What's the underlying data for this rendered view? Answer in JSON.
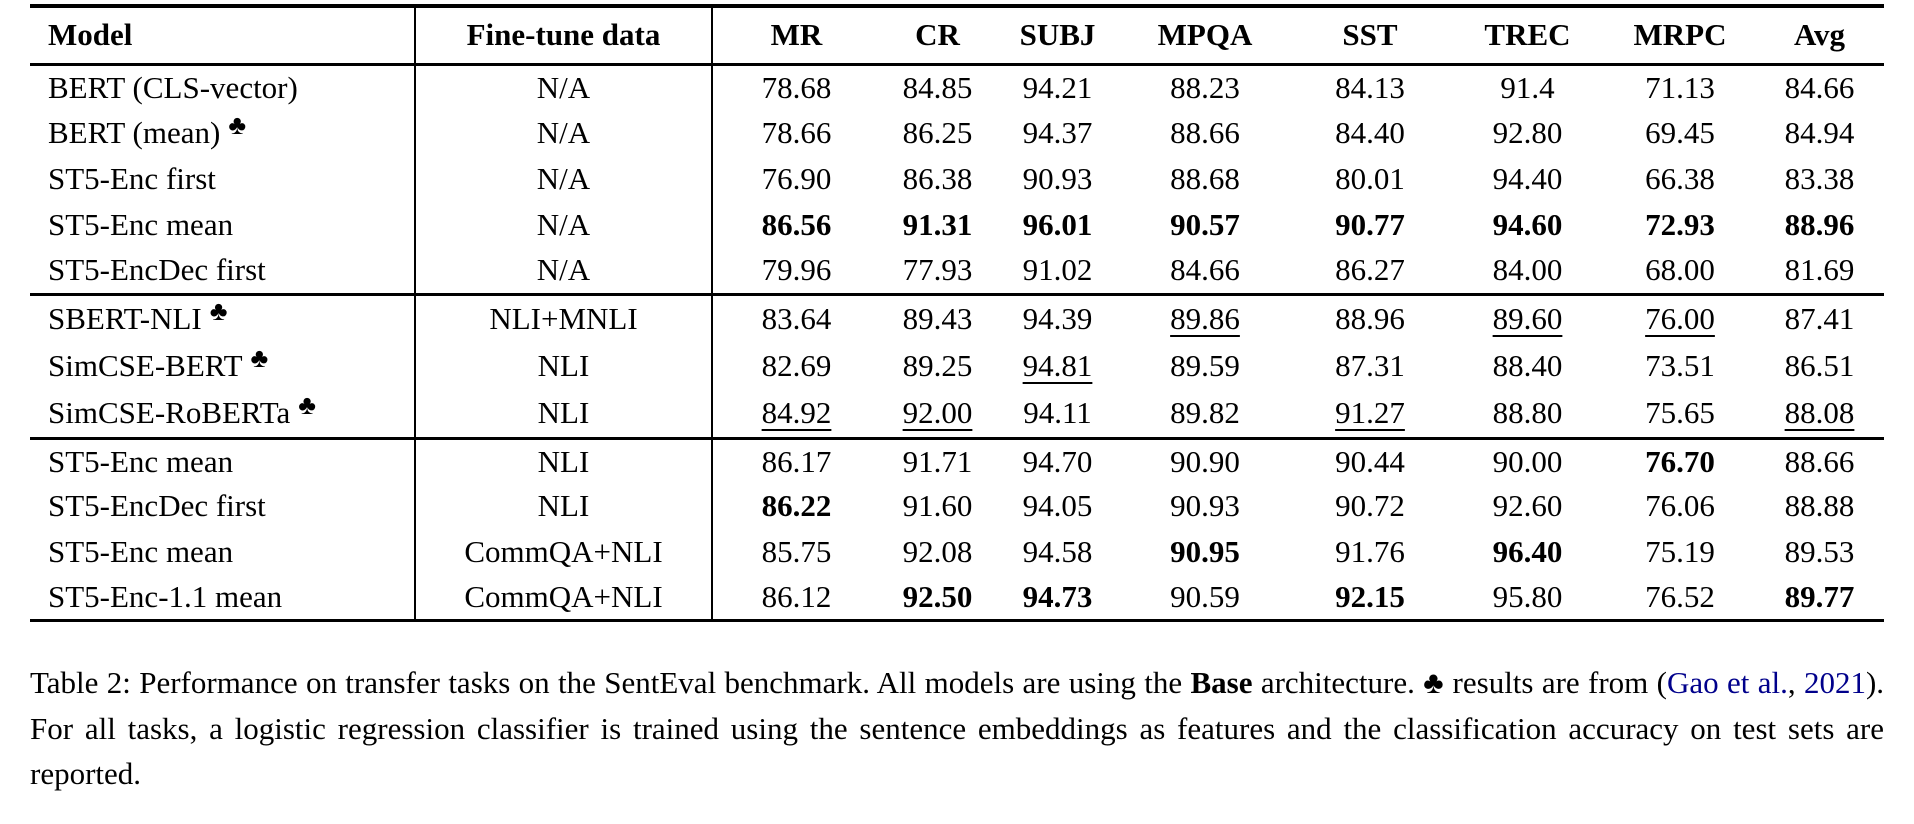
{
  "colors": {
    "citation_blue": "#00008B",
    "text": "#000000"
  },
  "icons": {
    "club": "♣"
  },
  "table": {
    "columns": [
      "Model",
      "Fine-tune data",
      "MR",
      "CR",
      "SUBJ",
      "MPQA",
      "SST",
      "TREC",
      "MRPC",
      "Avg"
    ],
    "groups": [
      {
        "rows": [
          {
            "model": "BERT (CLS-vector)",
            "club": false,
            "finetune": "N/A",
            "scores": [
              [
                "78.68",
                ""
              ],
              [
                "84.85",
                ""
              ],
              [
                "94.21",
                ""
              ],
              [
                "88.23",
                ""
              ],
              [
                "84.13",
                ""
              ],
              [
                "91.4",
                ""
              ],
              [
                "71.13",
                ""
              ],
              [
                "84.66",
                ""
              ]
            ]
          },
          {
            "model": "BERT (mean)",
            "club": true,
            "finetune": "N/A",
            "scores": [
              [
                "78.66",
                ""
              ],
              [
                "86.25",
                ""
              ],
              [
                "94.37",
                ""
              ],
              [
                "88.66",
                ""
              ],
              [
                "84.40",
                ""
              ],
              [
                "92.80",
                ""
              ],
              [
                "69.45",
                ""
              ],
              [
                "84.94",
                ""
              ]
            ]
          },
          {
            "model": "ST5-Enc first",
            "club": false,
            "finetune": "N/A",
            "scores": [
              [
                "76.90",
                ""
              ],
              [
                "86.38",
                ""
              ],
              [
                "90.93",
                ""
              ],
              [
                "88.68",
                ""
              ],
              [
                "80.01",
                ""
              ],
              [
                "94.40",
                ""
              ],
              [
                "66.38",
                ""
              ],
              [
                "83.38",
                ""
              ]
            ]
          },
          {
            "model": "ST5-Enc mean",
            "club": false,
            "finetune": "N/A",
            "scores": [
              [
                "86.56",
                "b"
              ],
              [
                "91.31",
                "b"
              ],
              [
                "96.01",
                "b"
              ],
              [
                "90.57",
                "b"
              ],
              [
                "90.77",
                "b"
              ],
              [
                "94.60",
                "b"
              ],
              [
                "72.93",
                "b"
              ],
              [
                "88.96",
                "b"
              ]
            ]
          },
          {
            "model": "ST5-EncDec first",
            "club": false,
            "finetune": "N/A",
            "scores": [
              [
                "79.96",
                ""
              ],
              [
                "77.93",
                ""
              ],
              [
                "91.02",
                ""
              ],
              [
                "84.66",
                ""
              ],
              [
                "86.27",
                ""
              ],
              [
                "84.00",
                ""
              ],
              [
                "68.00",
                ""
              ],
              [
                "81.69",
                ""
              ]
            ]
          }
        ]
      },
      {
        "rows": [
          {
            "model": "SBERT-NLI",
            "club": true,
            "finetune": "NLI+MNLI",
            "scores": [
              [
                "83.64",
                ""
              ],
              [
                "89.43",
                ""
              ],
              [
                "94.39",
                ""
              ],
              [
                "89.86",
                "u"
              ],
              [
                "88.96",
                ""
              ],
              [
                "89.60",
                "u"
              ],
              [
                "76.00",
                "u"
              ],
              [
                "87.41",
                ""
              ]
            ]
          },
          {
            "model": "SimCSE-BERT",
            "club": true,
            "finetune": "NLI",
            "scores": [
              [
                "82.69",
                ""
              ],
              [
                "89.25",
                ""
              ],
              [
                "94.81",
                "u"
              ],
              [
                "89.59",
                ""
              ],
              [
                "87.31",
                ""
              ],
              [
                "88.40",
                ""
              ],
              [
                "73.51",
                ""
              ],
              [
                "86.51",
                ""
              ]
            ]
          },
          {
            "model": "SimCSE-RoBERTa",
            "club": true,
            "finetune": "NLI",
            "scores": [
              [
                "84.92",
                "u"
              ],
              [
                "92.00",
                "u"
              ],
              [
                "94.11",
                ""
              ],
              [
                "89.82",
                ""
              ],
              [
                "91.27",
                "u"
              ],
              [
                "88.80",
                ""
              ],
              [
                "75.65",
                ""
              ],
              [
                "88.08",
                "u"
              ]
            ]
          }
        ]
      },
      {
        "rows": [
          {
            "model": "ST5-Enc mean",
            "club": false,
            "finetune": "NLI",
            "scores": [
              [
                "86.17",
                ""
              ],
              [
                "91.71",
                ""
              ],
              [
                "94.70",
                ""
              ],
              [
                "90.90",
                ""
              ],
              [
                "90.44",
                ""
              ],
              [
                "90.00",
                ""
              ],
              [
                "76.70",
                "b"
              ],
              [
                "88.66",
                ""
              ]
            ]
          },
          {
            "model": "ST5-EncDec first",
            "club": false,
            "finetune": "NLI",
            "scores": [
              [
                "86.22",
                "b"
              ],
              [
                "91.60",
                ""
              ],
              [
                "94.05",
                ""
              ],
              [
                "90.93",
                ""
              ],
              [
                "90.72",
                ""
              ],
              [
                "92.60",
                ""
              ],
              [
                "76.06",
                ""
              ],
              [
                "88.88",
                ""
              ]
            ]
          },
          {
            "model": "ST5-Enc mean",
            "club": false,
            "finetune": "CommQA+NLI",
            "scores": [
              [
                "85.75",
                ""
              ],
              [
                "92.08",
                ""
              ],
              [
                "94.58",
                ""
              ],
              [
                "90.95",
                "b"
              ],
              [
                "91.76",
                ""
              ],
              [
                "96.40",
                "b"
              ],
              [
                "75.19",
                ""
              ],
              [
                "89.53",
                ""
              ]
            ]
          },
          {
            "model": "ST5-Enc-1.1 mean",
            "club": false,
            "finetune": "CommQA+NLI",
            "scores": [
              [
                "86.12",
                ""
              ],
              [
                "92.50",
                "b"
              ],
              [
                "94.73",
                "b"
              ],
              [
                "90.59",
                ""
              ],
              [
                "92.15",
                "b"
              ],
              [
                "95.80",
                ""
              ],
              [
                "76.52",
                ""
              ],
              [
                "89.77",
                "b"
              ]
            ]
          }
        ]
      }
    ]
  },
  "caption": {
    "segments": [
      {
        "text": "Table 2: Performance on transfer tasks on the SentEval benchmark.  All models are using the ",
        "style": ""
      },
      {
        "text": "Base",
        "style": "bold"
      },
      {
        "text": " architecture. ",
        "style": ""
      },
      {
        "text": "♣",
        "style": ""
      },
      {
        "text": " results are from (",
        "style": ""
      },
      {
        "text": "Gao et al.",
        "style": "link"
      },
      {
        "text": ", ",
        "style": ""
      },
      {
        "text": "2021",
        "style": "link"
      },
      {
        "text": ").  For all tasks, a logistic regression classifier is trained using the sentence embeddings as features and the classification accuracy on test sets are reported.",
        "style": ""
      }
    ]
  }
}
